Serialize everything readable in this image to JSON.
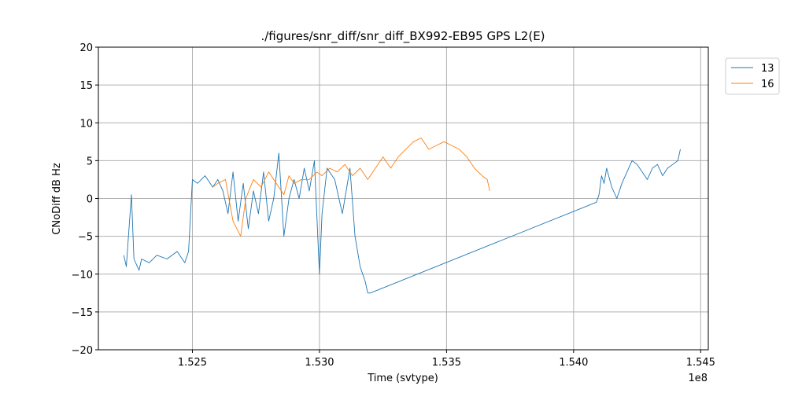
{
  "chart_data": {
    "type": "line",
    "title": "./figures/snr_diff/snr_diff_BX992-EB95 GPS  L2(E)",
    "xlabel": "Time (svtype)",
    "ylabel": "CNoDiff dB Hz",
    "x_offset_label": "1e8",
    "xlim": [
      152130000,
      154530000
    ],
    "ylim": [
      -20,
      20
    ],
    "x_scale": 100000000,
    "x_ticks": [
      152500000,
      153000000,
      153500000,
      154000000,
      154500000
    ],
    "x_tick_labels": [
      "1.525",
      "1.530",
      "1.535",
      "1.540",
      "1.545"
    ],
    "y_ticks": [
      -20,
      -15,
      -10,
      -5,
      0,
      5,
      10,
      15,
      20
    ],
    "y_tick_labels": [
      "−20",
      "−15",
      "−10",
      "−5",
      "0",
      "5",
      "10",
      "15",
      "20"
    ],
    "grid": true,
    "legend_position": "upper-right-outside",
    "series": [
      {
        "name": "13",
        "color": "#1f77b4",
        "x": [
          152230000,
          152240000,
          152260000,
          152270000,
          152290000,
          152300000,
          152330000,
          152360000,
          152400000,
          152440000,
          152470000,
          152485000,
          152500000,
          152520000,
          152550000,
          152580000,
          152600000,
          152620000,
          152640000,
          152660000,
          152680000,
          152700000,
          152720000,
          152740000,
          152760000,
          152780000,
          152800000,
          152820000,
          152840000,
          152860000,
          152880000,
          152900000,
          152920000,
          152940000,
          152960000,
          152980000,
          153000000,
          153010000,
          153030000,
          153060000,
          153090000,
          153120000,
          153140000,
          153160000,
          153180000,
          153190000,
          153200000,
          154090000,
          154100000,
          154110000,
          154120000,
          154130000,
          154150000,
          154170000,
          154190000,
          154210000,
          154230000,
          154250000,
          154270000,
          154290000,
          154310000,
          154330000,
          154350000,
          154370000,
          154390000,
          154410000,
          154420000
        ],
        "y": [
          -7.5,
          -9,
          0.5,
          -8,
          -9.5,
          -8,
          -8.5,
          -7.5,
          -8,
          -7,
          -8.5,
          -7,
          2.5,
          2,
          3,
          1.5,
          2.5,
          1,
          -2,
          3.5,
          -3,
          2,
          -4,
          1,
          -2,
          3.5,
          -3,
          0,
          6,
          -5,
          0,
          2.5,
          0,
          4,
          1,
          5,
          -10,
          -2,
          4,
          2.5,
          -2,
          4,
          -5,
          -9,
          -11,
          -12.5,
          -12.5,
          -0.5,
          0.5,
          3,
          2,
          4,
          1.5,
          0,
          2,
          3.5,
          5,
          4.5,
          3.5,
          2.5,
          4,
          4.5,
          3,
          4,
          4.5,
          5,
          6.5
        ]
      },
      {
        "name": "16",
        "color": "#ff7f0e",
        "x": [
          152580000,
          152600000,
          152630000,
          152660000,
          152690000,
          152710000,
          152740000,
          152770000,
          152800000,
          152830000,
          152860000,
          152880000,
          152900000,
          152930000,
          152960000,
          152990000,
          153010000,
          153040000,
          153070000,
          153100000,
          153130000,
          153160000,
          153190000,
          153220000,
          153250000,
          153280000,
          153310000,
          153340000,
          153370000,
          153400000,
          153430000,
          153460000,
          153490000,
          153520000,
          153550000,
          153580000,
          153610000,
          153640000,
          153660000,
          153670000
        ],
        "y": [
          1.5,
          2,
          2.5,
          -3,
          -5,
          0,
          2.5,
          1.5,
          3.5,
          2,
          0.5,
          3,
          2,
          2.5,
          2.5,
          3.5,
          3,
          4,
          3.5,
          4.5,
          3,
          4,
          2.5,
          4,
          5.5,
          4,
          5.5,
          6.5,
          7.5,
          8,
          6.5,
          7,
          7.5,
          7,
          6.5,
          5.5,
          4,
          3,
          2.5,
          1
        ]
      }
    ]
  }
}
